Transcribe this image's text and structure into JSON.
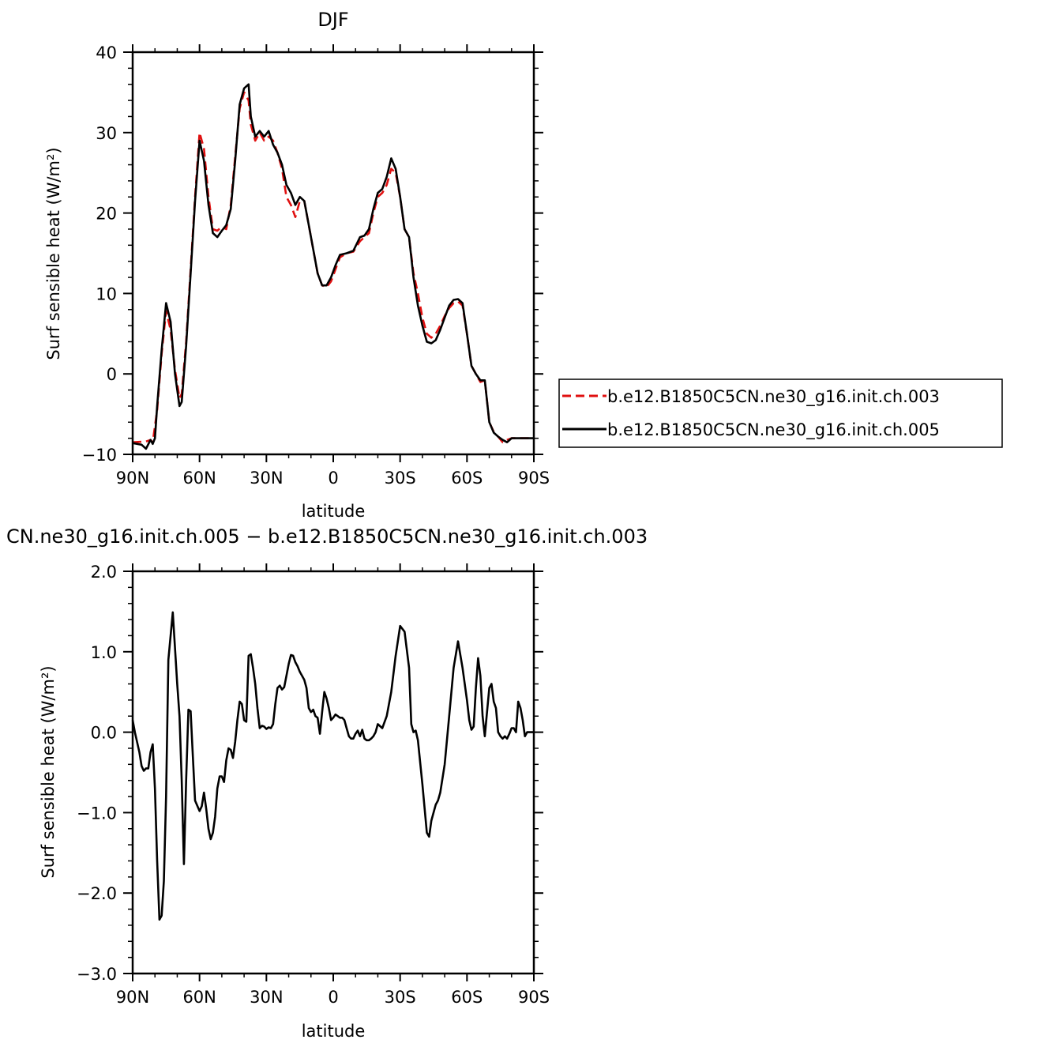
{
  "chart_data": [
    {
      "type": "line",
      "title": "DJF",
      "xlabel": "latitude",
      "ylabel": "Surf  sensible heat (W/m²)",
      "xlim": [
        90,
        -90
      ],
      "ylim": [
        -10,
        40
      ],
      "x_ticks": [
        90,
        60,
        30,
        0,
        -30,
        -60,
        -90
      ],
      "x_tick_labels": [
        "90N",
        "60N",
        "30N",
        "0",
        "30S",
        "60S",
        "90S"
      ],
      "y_ticks": [
        -10,
        0,
        10,
        20,
        30,
        40
      ],
      "y_tick_labels": [
        "−10",
        "0",
        "10",
        "20",
        "30",
        "40"
      ],
      "legend_position": "right",
      "series": [
        {
          "name": "b.e12.B1850C5CN.ne30_g16.init.ch.003",
          "color": "#e01010",
          "dash": "dashed",
          "x": [
            90,
            84,
            82,
            81,
            79,
            77,
            75,
            73,
            71,
            69,
            68,
            66,
            64,
            62,
            60,
            58,
            56,
            54,
            52,
            50,
            48,
            46,
            44,
            42,
            40,
            38,
            37,
            35,
            33,
            31,
            29,
            27,
            25,
            23,
            21,
            19,
            17,
            15,
            13,
            11,
            9,
            7,
            5,
            3,
            1,
            -1,
            -3,
            -6,
            -9,
            -12,
            -14,
            -16,
            -18,
            -20,
            -22,
            -24,
            -26,
            -28,
            -30,
            -32,
            -34,
            -36,
            -38,
            -40,
            -42,
            -44,
            -46,
            -48,
            -50,
            -52,
            -54,
            -56,
            -58,
            -60,
            -62,
            -64,
            -66,
            -68,
            -70,
            -72,
            -74,
            -76,
            -78,
            -80,
            -82,
            -84,
            -86,
            -88,
            -90
          ],
          "y": [
            -8.5,
            -8.4,
            -8.2,
            -8.5,
            -4.5,
            2.5,
            7.8,
            5.5,
            0.5,
            -3.0,
            -2.5,
            4.0,
            13.0,
            22.0,
            30.0,
            28.0,
            22.0,
            18.0,
            17.8,
            18.3,
            18.0,
            21.0,
            27.0,
            33.0,
            35.0,
            34.0,
            31.0,
            29.0,
            30.0,
            29.0,
            29.5,
            29.0,
            27.5,
            25.5,
            22.0,
            21.0,
            19.5,
            21.5,
            21.5,
            18.5,
            15.5,
            12.5,
            11.0,
            10.8,
            11.5,
            13.0,
            14.5,
            15.0,
            15.2,
            16.5,
            17.0,
            17.5,
            20.0,
            22.0,
            22.5,
            23.5,
            25.5,
            25.0,
            22.0,
            18.0,
            17.0,
            12.5,
            10.0,
            7.0,
            5.0,
            4.5,
            5.0,
            6.0,
            7.2,
            8.2,
            8.8,
            9.0,
            8.5,
            5.0,
            1.0,
            0.0,
            -1.0,
            -0.8,
            -6.0,
            -7.2,
            -7.8,
            -8.5,
            -8.2,
            -8.0,
            -8.0,
            -8.0,
            -8.0,
            -8.0,
            -8.0
          ]
        },
        {
          "name": "b.e12.B1850C5CN.ne30_g16.init.ch.005",
          "color": "#000000",
          "dash": "solid",
          "x": [
            90,
            86,
            84,
            82,
            81,
            80,
            79,
            77,
            75,
            73,
            71,
            69,
            68,
            66,
            64,
            62,
            60,
            58,
            56,
            54,
            52,
            50,
            48,
            46,
            44,
            42,
            40,
            38,
            37,
            35,
            33,
            31,
            29,
            27,
            25,
            23,
            21,
            19,
            17,
            15,
            13,
            11,
            9,
            7,
            5,
            3,
            1,
            -1,
            -3,
            -6,
            -9,
            -12,
            -14,
            -16,
            -18,
            -20,
            -22,
            -24,
            -26,
            -28,
            -30,
            -32,
            -34,
            -36,
            -38,
            -40,
            -42,
            -44,
            -46,
            -48,
            -50,
            -52,
            -54,
            -56,
            -58,
            -60,
            -62,
            -64,
            -66,
            -68,
            -70,
            -72,
            -74,
            -76,
            -78,
            -80,
            -82,
            -84,
            -86,
            -88,
            -90
          ],
          "y": [
            -8.6,
            -8.8,
            -9.3,
            -8.2,
            -8.7,
            -8.0,
            -4.0,
            3.0,
            8.8,
            6.5,
            0.0,
            -4.0,
            -3.5,
            3.5,
            12.5,
            21.5,
            29.0,
            26.5,
            21.0,
            17.5,
            17.0,
            17.8,
            18.5,
            20.5,
            26.5,
            33.5,
            35.5,
            36.0,
            32.0,
            29.5,
            30.2,
            29.5,
            30.2,
            28.5,
            27.5,
            26.0,
            23.5,
            22.5,
            21.0,
            22.0,
            21.5,
            18.5,
            15.5,
            12.5,
            11.0,
            11.0,
            12.0,
            13.5,
            14.8,
            15.0,
            15.3,
            17.0,
            17.2,
            18.0,
            20.5,
            22.5,
            23.0,
            24.5,
            26.8,
            25.5,
            22.0,
            18.0,
            17.0,
            12.0,
            8.5,
            6.0,
            4.0,
            3.8,
            4.2,
            5.5,
            7.0,
            8.5,
            9.2,
            9.3,
            8.8,
            5.0,
            1.0,
            0.0,
            -0.8,
            -0.8,
            -6.0,
            -7.3,
            -7.8,
            -8.2,
            -8.5,
            -8.0,
            -8.0,
            -8.0,
            -8.0,
            -8.0,
            -8.0
          ]
        }
      ]
    },
    {
      "type": "line",
      "title": "CN.ne30_g16.init.ch.005 − b.e12.B1850C5CN.ne30_g16.init.ch.003",
      "xlabel": "latitude",
      "ylabel": "Surf  sensible heat (W/m²)",
      "xlim": [
        90,
        -90
      ],
      "ylim": [
        -3.0,
        2.0
      ],
      "x_ticks": [
        90,
        60,
        30,
        0,
        -30,
        -60,
        -90
      ],
      "x_tick_labels": [
        "90N",
        "60N",
        "30N",
        "0",
        "30S",
        "60S",
        "90S"
      ],
      "y_ticks": [
        -3.0,
        -2.0,
        -1.0,
        0.0,
        1.0,
        2.0
      ],
      "y_tick_labels": [
        "−3.0",
        "−2.0",
        "−1.0",
        "0.0",
        "1.0",
        "2.0"
      ],
      "series": [
        {
          "color": "#000000",
          "dash": "solid",
          "x": [
            90,
            89,
            87,
            86,
            85,
            84,
            83,
            82,
            81,
            80,
            79,
            78,
            77,
            76,
            75,
            74,
            72,
            70,
            69,
            68,
            67,
            66,
            65,
            64,
            63,
            62,
            60,
            59,
            58,
            57,
            56,
            55,
            54,
            53,
            52,
            51,
            50,
            49,
            48,
            47,
            46,
            45,
            44,
            43,
            42,
            41,
            40,
            39,
            38,
            37,
            36,
            35,
            34,
            33,
            32,
            31,
            30,
            29,
            28,
            27,
            26,
            25,
            24,
            23,
            22,
            21,
            20,
            19,
            18,
            17,
            16,
            15,
            14,
            13,
            12,
            11,
            10,
            9,
            8,
            7,
            6,
            5,
            4,
            3,
            2,
            1,
            0,
            -1,
            -2,
            -3,
            -4,
            -5,
            -6,
            -7,
            -8,
            -9,
            -10,
            -11,
            -12,
            -13,
            -14,
            -15,
            -16,
            -17,
            -18,
            -19,
            -20,
            -22,
            -24,
            -26,
            -28,
            -30,
            -32,
            -34,
            -35,
            -36,
            -37,
            -38,
            -40,
            -42,
            -43,
            -44,
            -45,
            -46,
            -47,
            -48,
            -50,
            -52,
            -54,
            -56,
            -58,
            -60,
            -61,
            -62,
            -63,
            -64,
            -65,
            -66,
            -67,
            -68,
            -69,
            -70,
            -71,
            -72,
            -73,
            -74,
            -75,
            -76,
            -77,
            -78,
            -79,
            -80,
            -81,
            -82,
            -83,
            -84,
            -85,
            -86,
            -87,
            -88,
            -89,
            -90
          ],
          "y": [
            0.15,
            0.0,
            -0.25,
            -0.42,
            -0.48,
            -0.45,
            -0.45,
            -0.25,
            -0.15,
            -0.7,
            -1.6,
            -2.33,
            -2.28,
            -1.85,
            -0.8,
            0.9,
            1.49,
            0.6,
            0.2,
            -0.6,
            -1.64,
            -0.6,
            0.28,
            0.26,
            -0.3,
            -0.85,
            -0.98,
            -0.92,
            -0.75,
            -0.95,
            -1.2,
            -1.33,
            -1.25,
            -1.05,
            -0.7,
            -0.55,
            -0.55,
            -0.62,
            -0.35,
            -0.2,
            -0.22,
            -0.32,
            -0.12,
            0.15,
            0.38,
            0.35,
            0.15,
            0.13,
            0.95,
            0.97,
            0.8,
            0.6,
            0.3,
            0.05,
            0.08,
            0.07,
            0.04,
            0.06,
            0.05,
            0.1,
            0.35,
            0.55,
            0.58,
            0.53,
            0.56,
            0.7,
            0.85,
            0.96,
            0.95,
            0.87,
            0.82,
            0.75,
            0.7,
            0.65,
            0.55,
            0.3,
            0.25,
            0.28,
            0.2,
            0.18,
            -0.02,
            0.25,
            0.5,
            0.42,
            0.3,
            0.15,
            0.18,
            0.22,
            0.2,
            0.18,
            0.18,
            0.15,
            0.05,
            -0.05,
            -0.08,
            -0.08,
            -0.02,
            0.02,
            -0.05,
            0.03,
            -0.08,
            -0.1,
            -0.1,
            -0.08,
            -0.05,
            0.0,
            0.1,
            0.05,
            0.2,
            0.5,
            0.95,
            1.32,
            1.25,
            0.8,
            0.1,
            0.0,
            0.02,
            -0.1,
            -0.65,
            -1.25,
            -1.3,
            -1.1,
            -1.0,
            -0.9,
            -0.85,
            -0.75,
            -0.4,
            0.2,
            0.8,
            1.13,
            0.8,
            0.4,
            0.15,
            0.03,
            0.07,
            0.55,
            0.92,
            0.7,
            0.2,
            -0.05,
            0.25,
            0.55,
            0.6,
            0.38,
            0.3,
            0.0,
            -0.05,
            -0.08,
            -0.05,
            -0.08,
            -0.02,
            0.05,
            0.05,
            0.0,
            0.38,
            0.3,
            0.15,
            -0.05,
            0.0,
            0.0,
            0.0,
            0.0
          ]
        }
      ]
    }
  ]
}
